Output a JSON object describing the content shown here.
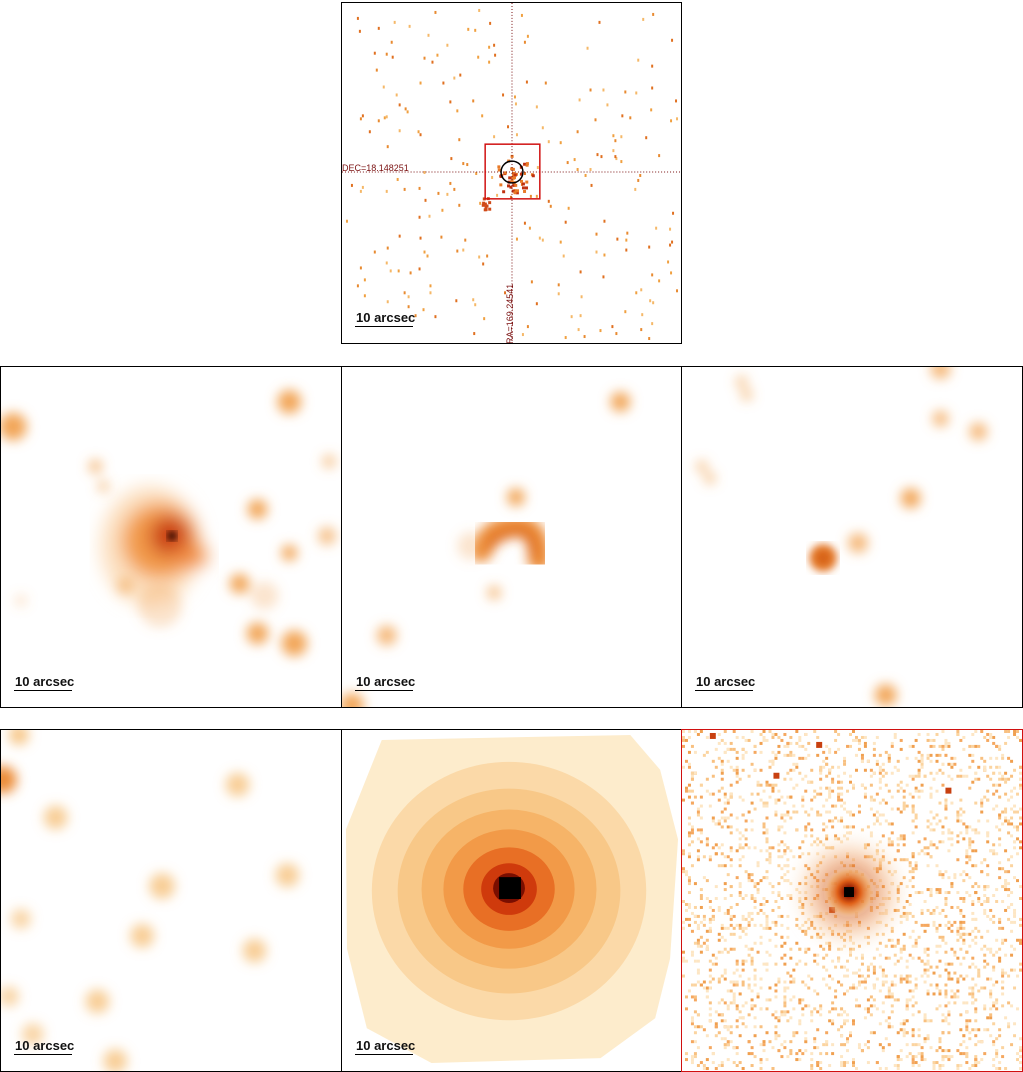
{
  "scale_label": "10 arcsec",
  "top_panel": {
    "dec_label": "DEC=18.148251",
    "ra_label": "RA=169.24541"
  },
  "panels": [
    {
      "id": "top",
      "border": "#000000",
      "content": "sparse-counts"
    },
    {
      "id": "mid-left",
      "border": "#000000",
      "content": "smoothed-extended"
    },
    {
      "id": "mid-center",
      "border": "#000000",
      "content": "smoothed-arc"
    },
    {
      "id": "mid-right",
      "border": "#000000",
      "content": "smoothed-point"
    },
    {
      "id": "bottom-left",
      "border": "#000000",
      "content": "smoothed-faint"
    },
    {
      "id": "bottom-center",
      "border": "#000000",
      "content": "psf-model"
    },
    {
      "id": "bottom-right",
      "border": "#d01010",
      "content": "noisy-point-source"
    }
  ],
  "colors": {
    "hot_dark": "#8b1a00",
    "hot_mid": "#e06010",
    "hot_light": "#f5b060",
    "overlay_line": "#7a1010",
    "box_red": "#d01010"
  }
}
